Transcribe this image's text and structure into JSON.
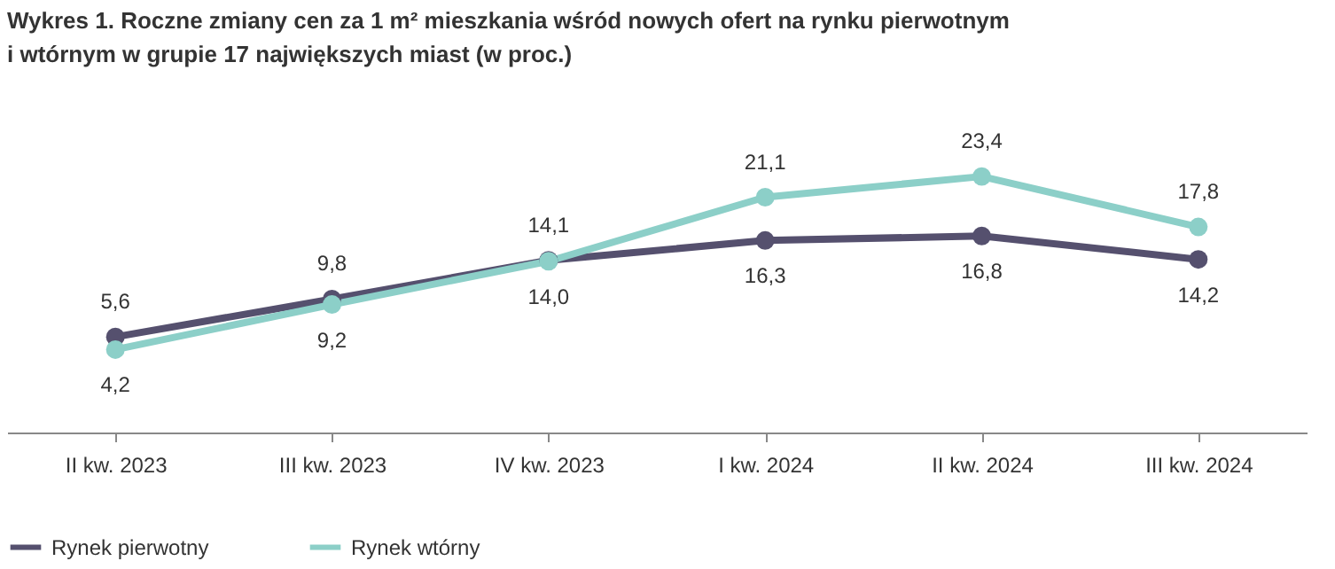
{
  "chart_data": {
    "type": "line",
    "title": "Wykres 1.  Roczne zmiany cen za 1 m² mieszkania wśród nowych ofert na rynku pierwotnym\ni wtórnym w grupie 17 największych miast (w proc.)",
    "categories": [
      "II kw. 2023",
      "III kw. 2023",
      "IV kw. 2023",
      "I kw. 2024",
      "II kw. 2024",
      "III kw. 2024"
    ],
    "series": [
      {
        "name": "Rynek pierwotny",
        "color": "#55506e",
        "values": [
          5.6,
          9.8,
          14.1,
          16.3,
          16.8,
          14.2
        ],
        "value_labels": [
          "5,6",
          "9,8",
          "14,1",
          "16,3",
          "16,8",
          "14,2"
        ]
      },
      {
        "name": "Rynek wtórny",
        "color": "#8ccfc8",
        "values": [
          4.2,
          9.2,
          14.0,
          21.1,
          23.4,
          17.8
        ],
        "value_labels": [
          "4,2",
          "9,2",
          "14,0",
          "21,1",
          "23,4",
          "17,8"
        ]
      }
    ],
    "marker": "circle",
    "line_style": "solid",
    "grid": false,
    "legend": "bottom left"
  }
}
